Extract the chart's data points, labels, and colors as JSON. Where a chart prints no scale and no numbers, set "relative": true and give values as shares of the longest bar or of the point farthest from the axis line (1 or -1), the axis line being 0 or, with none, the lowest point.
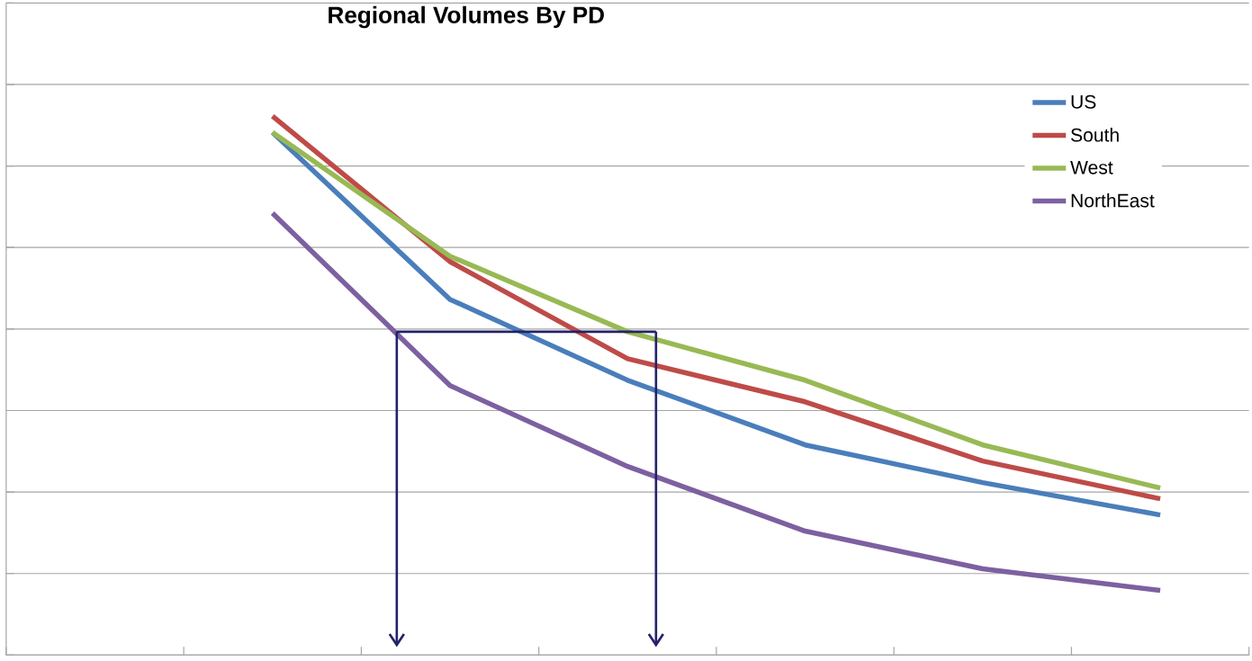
{
  "chart_data": {
    "type": "line",
    "title": "Regional Volumes By PD",
    "relative": true,
    "grid": "y",
    "legend": "top right",
    "marker": "none",
    "line_style": "solid",
    "categories": [
      null,
      null,
      null,
      null,
      null,
      null,
      null
    ],
    "series": [
      {
        "name": "US",
        "color": "#4a7ebb",
        "values": [
          null,
          0.97,
          0.66,
          0.51,
          0.39,
          0.32,
          0.26
        ]
      },
      {
        "name": "South",
        "color": "#be4b48",
        "values": [
          null,
          1,
          0.73,
          0.55,
          0.47,
          0.36,
          0.29
        ]
      },
      {
        "name": "West",
        "color": "#98b954",
        "values": [
          null,
          0.97,
          0.74,
          0.6,
          0.51,
          0.39,
          0.31
        ]
      },
      {
        "name": "NorthEast",
        "color": "#7d60a0",
        "values": [
          null,
          0.82,
          0.5,
          0.35,
          0.23,
          0.16,
          0.12
        ]
      }
    ]
  }
}
